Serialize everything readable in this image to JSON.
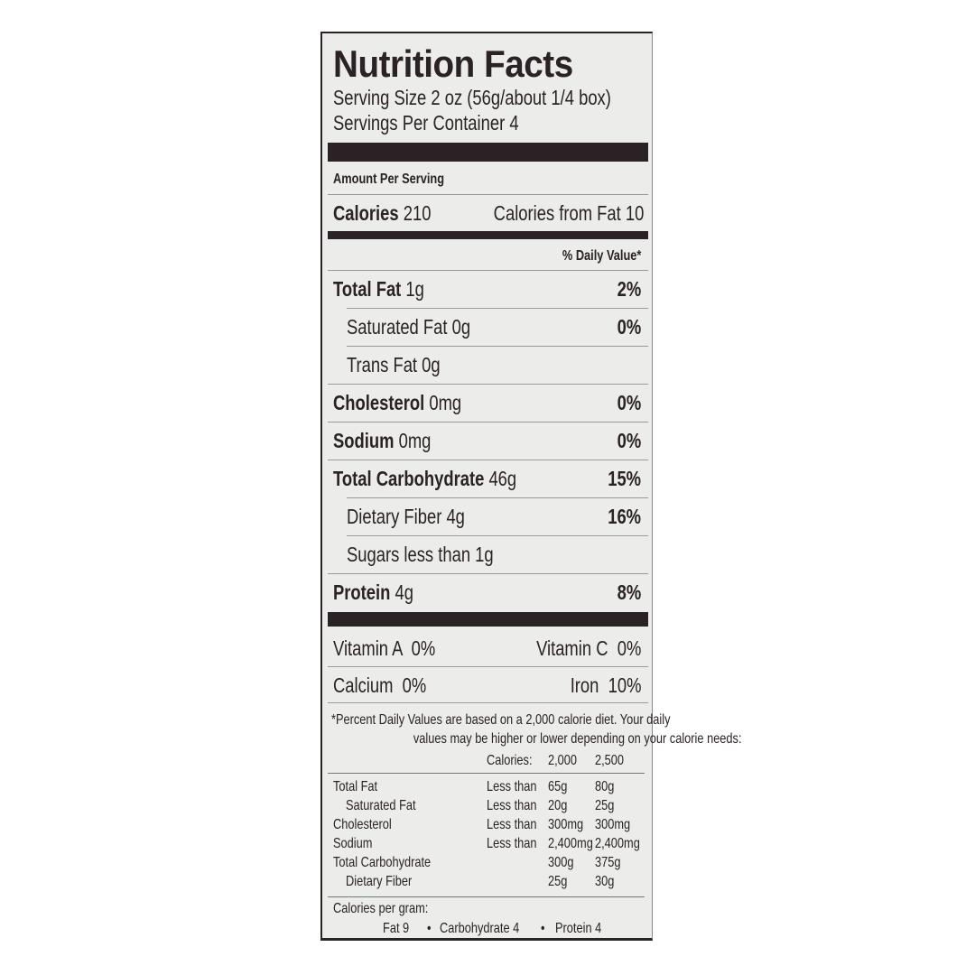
{
  "title": "Nutrition Facts",
  "serving_size": "Serving Size 2 oz (56g/about 1/4 box)",
  "servings_per_container": "Servings Per Container 4",
  "amount_per_serving": "Amount Per Serving",
  "calories": {
    "label": "Calories",
    "value": "210",
    "from_fat": "Calories from Fat 10"
  },
  "daily_value_header": "% Daily Value*",
  "nutrients": [
    {
      "label": "Total Fat",
      "amount": "1g",
      "dv": "2%"
    },
    {
      "label": "Saturated Fat",
      "amount": "0g",
      "dv": "0%"
    },
    {
      "label": "Trans Fat",
      "amount": "0g",
      "dv": ""
    },
    {
      "label": "Cholesterol",
      "amount": "0mg",
      "dv": "0%"
    },
    {
      "label": "Sodium",
      "amount": "0mg",
      "dv": "0%"
    },
    {
      "label": "Total Carbohydrate",
      "amount": "46g",
      "dv": "15%"
    },
    {
      "label": "Dietary Fiber",
      "amount": "4g",
      "dv": "16%"
    },
    {
      "label": "Sugars",
      "amount": "less than 1g",
      "dv": ""
    },
    {
      "label": "Protein",
      "amount": "4g",
      "dv": "8%"
    }
  ],
  "vitamins": [
    {
      "left": "Vitamin A  0%",
      "right": "Vitamin C  0%"
    },
    {
      "left": "Calcium  0%",
      "right": "Iron  10%"
    }
  ],
  "footnote": [
    "*Percent Daily Values are based on a 2,000 calorie diet. Your daily",
    "values may be higher or lower depending on your calorie needs:"
  ],
  "dv_table": {
    "header": [
      "Calories:",
      "2,000",
      "2,500"
    ],
    "rows": [
      [
        "Total Fat",
        "Less than",
        "65g",
        "80g"
      ],
      [
        "Saturated Fat",
        "Less than",
        "20g",
        "25g"
      ],
      [
        "Cholesterol",
        "Less than",
        "300mg",
        "300mg"
      ],
      [
        "Sodium",
        "Less than",
        "2,400mg",
        "2,400mg"
      ],
      [
        "Total Carbohydrate",
        "",
        "300g",
        "375g"
      ],
      [
        "Dietary Fiber",
        "",
        "25g",
        "30g"
      ]
    ]
  },
  "calories_per_gram": {
    "label": "Calories per gram:",
    "fat": "Fat 9",
    "carb": "Carbohydrate 4",
    "protein": "Protein 4",
    "sep": "•"
  }
}
